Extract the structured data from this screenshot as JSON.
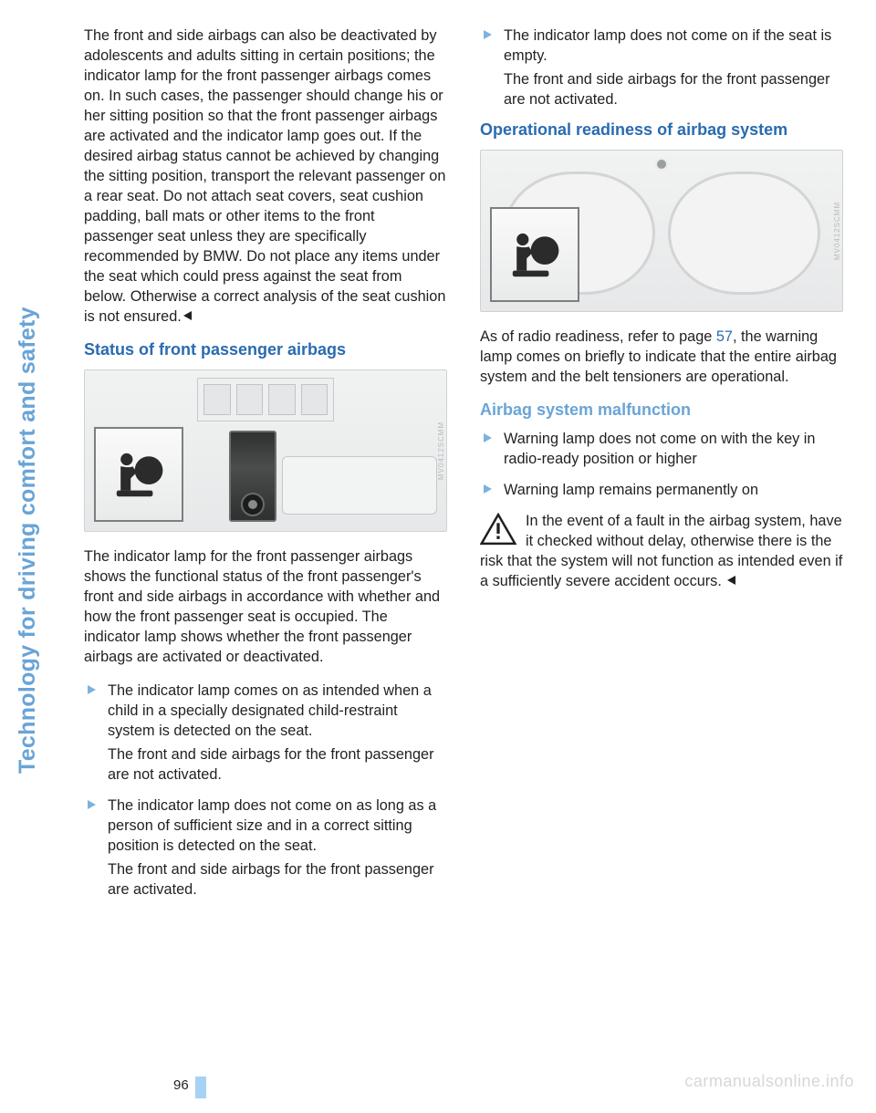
{
  "colors": {
    "heading_blue": "#2a6bb0",
    "light_blue": "#6aa4d6",
    "bullet_blue": "#7bb2df",
    "body_text": "#231f20",
    "watermark": "#d6d7d8",
    "page_tick": "#a8d2f4"
  },
  "side_tab": {
    "text": "Technology for driving comfort and safety",
    "color": "#6aa4d6"
  },
  "page_number": "96",
  "watermark": "carmanualsonline.info",
  "col1": {
    "intro": "The front and side airbags can also be deactivated by adolescents and adults sitting in certain positions; the indicator lamp for the front passenger airbags comes on. In such cases, the passenger should change his or her sitting position so that the front passenger airbags are activated and the indicator lamp goes out. If the desired airbag status cannot be achieved by changing the sitting position, transport the relevant passenger on a rear seat. Do not attach seat covers, seat cushion padding, ball mats or other items to the front passenger seat unless they are specifically recommended by BMW. Do not place any items under the seat which could press against the seat from below. Otherwise a correct analysis of the seat cushion is not ensured.",
    "h_status": "Status of front passenger airbags",
    "status_para": "The indicator lamp for the front passenger airbags shows the functional status of the front passenger's front and side airbags in accordance with whether and how the front passenger seat is occupied. The indicator lamp shows whether the front passenger airbags are activated or deactivated.",
    "bullets": [
      {
        "main": "The indicator lamp comes on as intended when a child in a specially designated child-restraint system is detected on the seat.",
        "sub": "The front and side airbags for the front passenger are not activated."
      },
      {
        "main": "The indicator lamp does not come on as long as a person of sufficient size and in a correct sitting position is detected on the seat.",
        "sub": "The front and side airbags for the front passenger are activated."
      }
    ]
  },
  "col2": {
    "bullet3": {
      "main": "The indicator lamp does not come on if the seat is empty.",
      "sub": "The front and side airbags for the front passenger are not activated."
    },
    "h_operational": "Operational readiness of airbag system",
    "operational_para_a": "As of radio readiness, refer to page ",
    "operational_page": "57",
    "operational_para_b": ", the warning lamp comes on briefly to indicate that the entire airbag system and the belt tensioners are operational.",
    "h_malfunction": "Airbag system malfunction",
    "malfunction_bullets": [
      "Warning lamp does not come on with the key in radio-ready position or higher",
      "Warning lamp remains permanently on"
    ],
    "warning_text": "In the event of a fault in the airbag system, have it checked without delay, otherwise there is the risk that the system will not function as intended even if a sufficiently severe accident occurs."
  },
  "figure_credit": "MV0412SCMM"
}
